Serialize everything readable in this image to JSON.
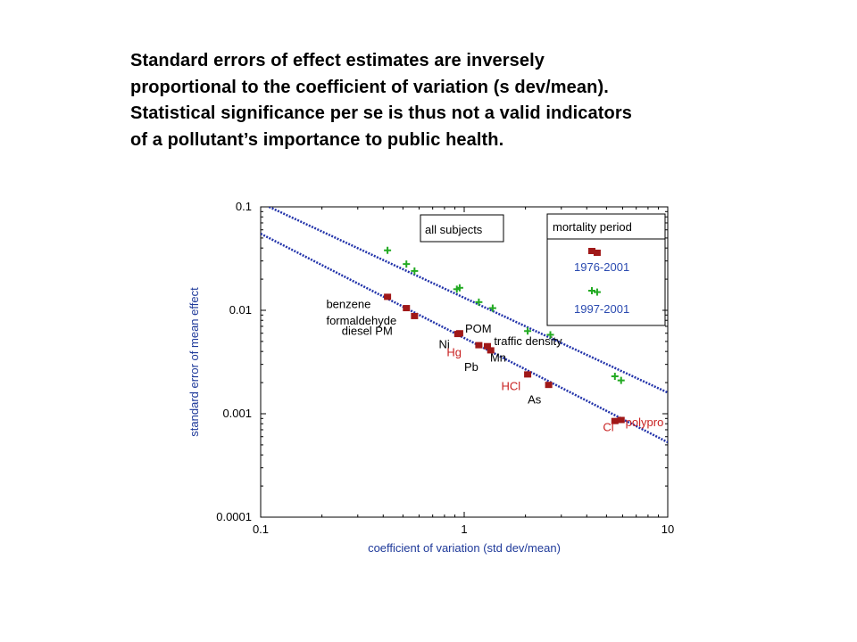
{
  "heading": {
    "lines": [
      "Standard errors of effect estimates are inversely",
      "proportional to the coefficient of variation (s dev/mean).",
      "Statistical significance per se is thus not a valid indicators",
      "of a pollutant’s importance to public health."
    ]
  },
  "colors": {
    "axis_label": "#1f3a9a",
    "fit_line": "#2233aa",
    "series_1976": "#a01818",
    "series_1997": "#22aa22",
    "label_red": "#c82020",
    "label_black": "#000000",
    "legend_text_blue": "#2a4ab0"
  },
  "chart_data": {
    "type": "scatter",
    "xscale": "log",
    "yscale": "log",
    "xlim": [
      0.1,
      10
    ],
    "ylim": [
      0.0001,
      0.1
    ],
    "xlabel": "coefficient of variation (std dev/mean)",
    "ylabel": "standard error of mean effect",
    "x_ticks": [
      "0.1",
      "1",
      "10"
    ],
    "y_ticks": [
      "0.1",
      "0.01",
      "0.001",
      "0.0001"
    ],
    "grid": false,
    "annotation": "all subjects",
    "legend": {
      "title": "mortality period",
      "placement": "top-right",
      "entries": [
        "1976-2001",
        "1997-2001"
      ]
    },
    "series": [
      {
        "name": "1976-2001",
        "marker": "square",
        "points": [
          {
            "x": 0.42,
            "y": 0.0135
          },
          {
            "x": 0.52,
            "y": 0.0105
          },
          {
            "x": 0.57,
            "y": 0.0088
          },
          {
            "x": 0.93,
            "y": 0.0059
          },
          {
            "x": 0.95,
            "y": 0.006
          },
          {
            "x": 1.18,
            "y": 0.0046
          },
          {
            "x": 1.3,
            "y": 0.0045
          },
          {
            "x": 1.35,
            "y": 0.0041
          },
          {
            "x": 2.05,
            "y": 0.0024
          },
          {
            "x": 2.6,
            "y": 0.0019
          },
          {
            "x": 4.5,
            "y": 0.036
          },
          {
            "x": 5.5,
            "y": 0.00085
          },
          {
            "x": 5.9,
            "y": 0.00087
          }
        ]
      },
      {
        "name": "1997-2001",
        "marker": "plus",
        "points": [
          {
            "x": 0.42,
            "y": 0.038
          },
          {
            "x": 0.52,
            "y": 0.028
          },
          {
            "x": 0.57,
            "y": 0.024
          },
          {
            "x": 0.92,
            "y": 0.016
          },
          {
            "x": 0.95,
            "y": 0.0165
          },
          {
            "x": 1.18,
            "y": 0.012
          },
          {
            "x": 1.38,
            "y": 0.0105
          },
          {
            "x": 2.05,
            "y": 0.0063
          },
          {
            "x": 2.65,
            "y": 0.0058
          },
          {
            "x": 5.5,
            "y": 0.0023
          },
          {
            "x": 5.9,
            "y": 0.0021
          },
          {
            "x": 4.5,
            "y": 0.015
          }
        ]
      }
    ],
    "fit_lines": [
      {
        "from": {
          "x": 0.11,
          "y": 0.1
        },
        "to": {
          "x": 10,
          "y": 0.0016
        }
      },
      {
        "from": {
          "x": 0.1,
          "y": 0.055
        },
        "to": {
          "x": 10,
          "y": 0.00053
        }
      }
    ],
    "point_labels": [
      {
        "text": "benzene",
        "x": 0.21,
        "y": 0.0105,
        "color": "black"
      },
      {
        "text": "formaldehyde",
        "x": 0.21,
        "y": 0.0073,
        "color": "black"
      },
      {
        "text": "diesel PM",
        "x": 0.25,
        "y": 0.0058,
        "color": "black"
      },
      {
        "text": "POM",
        "x": 1.01,
        "y": 0.0061,
        "color": "black"
      },
      {
        "text": "Ni",
        "x": 0.75,
        "y": 0.0043,
        "color": "black"
      },
      {
        "text": "traffic density",
        "x": 1.4,
        "y": 0.0046,
        "color": "black"
      },
      {
        "text": "Hg",
        "x": 0.82,
        "y": 0.0036,
        "color": "red"
      },
      {
        "text": "Mn",
        "x": 1.34,
        "y": 0.0032,
        "color": "black"
      },
      {
        "text": "Pb",
        "x": 1.0,
        "y": 0.0026,
        "color": "black"
      },
      {
        "text": "HCl",
        "x": 1.52,
        "y": 0.0017,
        "color": "red"
      },
      {
        "text": "As",
        "x": 2.05,
        "y": 0.00126,
        "color": "black"
      },
      {
        "text": "polypro",
        "x": 6.2,
        "y": 0.00076,
        "color": "red"
      },
      {
        "text": "Cl",
        "x": 4.8,
        "y": 0.00068,
        "color": "red"
      }
    ]
  }
}
